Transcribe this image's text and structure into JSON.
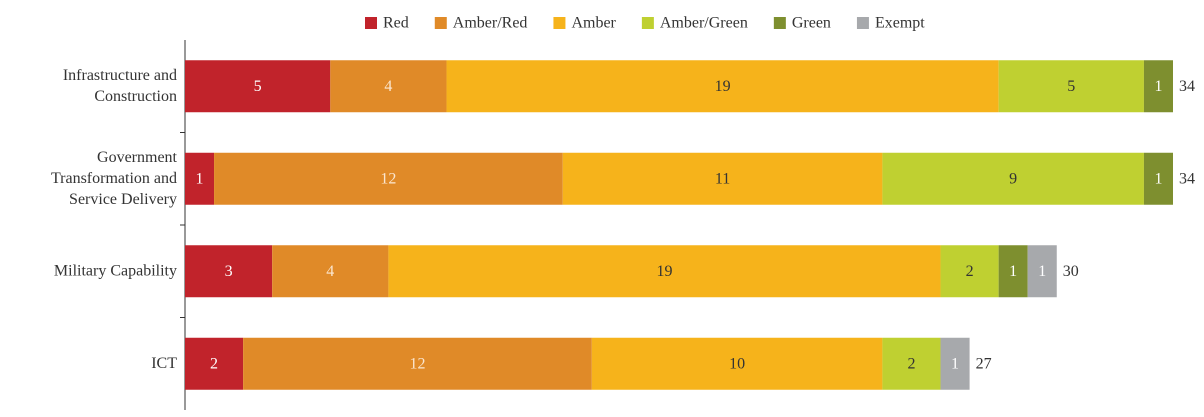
{
  "chart_data": {
    "type": "stacked-bar-horizontal",
    "categories": [
      [
        "Infrastructure and",
        "Construction"
      ],
      [
        "Government",
        "Transformation and",
        "Service Delivery"
      ],
      [
        "Military Capability"
      ],
      [
        "ICT"
      ]
    ],
    "series": [
      {
        "name": "Red",
        "color": "#c1232b",
        "label_color": "#ffffff",
        "values": [
          5,
          1,
          3,
          2
        ]
      },
      {
        "name": "Amber/Red",
        "color": "#e08a28",
        "label_color": "#fbe6cf",
        "values": [
          4,
          12,
          4,
          12
        ]
      },
      {
        "name": "Amber",
        "color": "#f6b31b",
        "label_color": "#333333",
        "values": [
          19,
          11,
          19,
          10
        ]
      },
      {
        "name": "Amber/Green",
        "color": "#bfd031",
        "label_color": "#333333",
        "values": [
          5,
          9,
          2,
          2
        ]
      },
      {
        "name": "Green",
        "color": "#7e8f2f",
        "label_color": "#ffffff",
        "values": [
          1,
          1,
          1,
          0
        ]
      },
      {
        "name": "Exempt",
        "color": "#a7a9ac",
        "label_color": "#ffffff",
        "values": [
          0,
          0,
          1,
          1
        ]
      }
    ],
    "totals": [
      34,
      34,
      30,
      27
    ],
    "xlim": [
      0,
      34
    ],
    "legend": "top"
  }
}
